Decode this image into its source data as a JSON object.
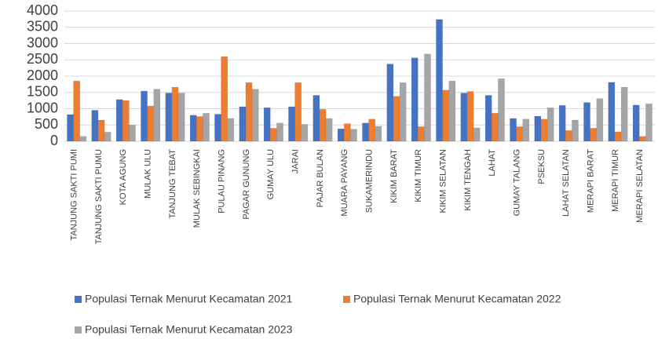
{
  "chart_data": {
    "type": "bar",
    "categories": [
      "TANJUNG SAKTI PUMI",
      "TANJUNG SAKTI PUMU",
      "KOTA AGUNG",
      "MULAK ULU",
      "TANJUNG TEBAT",
      "MULAK SEBINGKAI",
      "PULAU PINANG",
      "PAGAR GUNUNG",
      "GUMAY ULU",
      "JARAI",
      "PAJAR BULAN",
      "MUARA PAYANG",
      "SUKAMERINDU",
      "KIKIM BARAT",
      "KIKIM TIMUR",
      "KIKIM SELATAN",
      "KIKIM TENGAH",
      "LAHAT",
      "GUMAY TALANG",
      "PSEKSU",
      "LAHAT SELATAN",
      "MERAPI BARAT",
      "MERAPI TIMUR",
      "MERAPI SELATAN"
    ],
    "series": [
      {
        "name": "Populasi Ternak Menurut Kecamatan 2021",
        "color": "#4472c4",
        "values": [
          820,
          950,
          1280,
          1540,
          1480,
          800,
          830,
          1060,
          1030,
          1060,
          1410,
          380,
          560,
          2370,
          2560,
          3740,
          1480,
          1410,
          700,
          770,
          1100,
          1190,
          1810,
          1110
        ]
      },
      {
        "name": "Populasi Ternak Menurut Kecamatan 2022",
        "color": "#ed7d31",
        "values": [
          1850,
          650,
          1250,
          1080,
          1660,
          760,
          2600,
          1800,
          400,
          1800,
          980,
          540,
          680,
          1380,
          450,
          1570,
          1530,
          860,
          450,
          680,
          330,
          400,
          290,
          150
        ]
      },
      {
        "name": "Populasi Ternak Menurut Kecamatan 2023",
        "color": "#a5a5a5",
        "values": [
          150,
          280,
          500,
          1600,
          1480,
          860,
          700,
          1600,
          560,
          520,
          700,
          370,
          460,
          1800,
          2680,
          1850,
          410,
          1920,
          680,
          1030,
          650,
          1310,
          1660,
          1150
        ]
      }
    ],
    "ylim": [
      0,
      4000
    ],
    "yticks": [
      0,
      500,
      1000,
      1500,
      2000,
      2500,
      3000,
      3500,
      4000
    ],
    "grid": true
  }
}
